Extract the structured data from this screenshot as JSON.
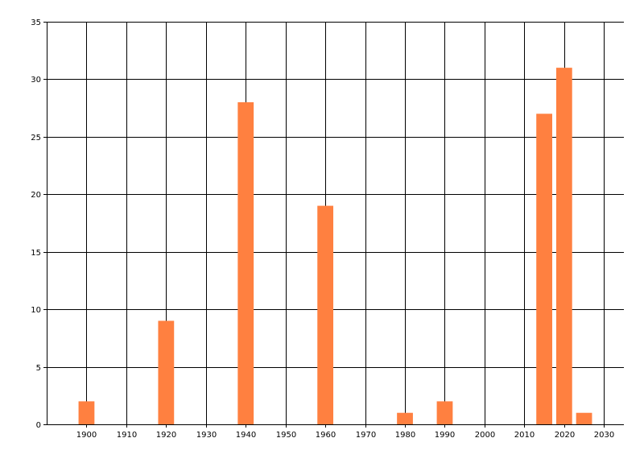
{
  "chart_data": {
    "type": "bar",
    "title": "",
    "xlabel": "",
    "ylabel": "",
    "x": [
      1900,
      1920,
      1940,
      1960,
      1980,
      1990,
      2015,
      2020,
      2025
    ],
    "values": [
      2,
      9,
      28,
      19,
      1,
      2,
      27,
      31,
      1
    ],
    "bar_width_years": 4,
    "xlim": [
      1890,
      2035
    ],
    "ylim": [
      0,
      35
    ],
    "xticks": [
      1900,
      1910,
      1920,
      1930,
      1940,
      1950,
      1960,
      1970,
      1980,
      1990,
      2000,
      2010,
      2020,
      2030
    ],
    "yticks": [
      0,
      5,
      10,
      15,
      20,
      25,
      30,
      35
    ],
    "grid": true,
    "bar_color": "#FF8040"
  }
}
